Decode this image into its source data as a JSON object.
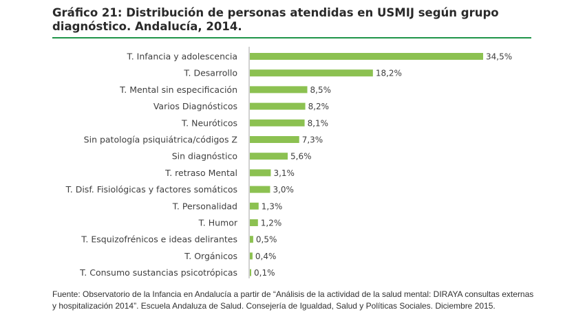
{
  "title": "Gráfico 21: Distribución de personas atendidas en USMIJ según grupo diagnóstico. Andalucía, 2014.",
  "source": "Fuente: Observatorio de la Infancia en Andalucía a partir de “Análisis de la actividad de la salud mental: DIRAYA consultas externas y hospitalización 2014”. Escuela Andaluza de Salud. Consejería de Igualdad, Salud y Políticas Sociales. Diciembre 2015.",
  "colors": {
    "bar": "#8cc151",
    "rule": "#1e9448",
    "axis": "#a6a6a6"
  },
  "chart_data": {
    "type": "bar",
    "orientation": "horizontal",
    "categories": [
      "T. Infancia y adolescencia",
      "T. Desarrollo",
      "T. Mental sin especificación",
      "Varios Diagnósticos",
      "T. Neuróticos",
      "Sin patología psiquiátrica/códigos Z",
      "Sin diagnóstico",
      "T. retraso Mental",
      "T. Disf. Fisiológicas y factores somáticos",
      "T. Personalidad",
      "T. Humor",
      "T. Esquizofrénicos e ideas delirantes",
      "T. Orgánicos",
      "T. Consumo sustancias psicotrópicas"
    ],
    "values": [
      34.5,
      18.2,
      8.5,
      8.2,
      8.1,
      7.3,
      5.6,
      3.1,
      3.0,
      1.3,
      1.2,
      0.5,
      0.4,
      0.1
    ],
    "value_labels": [
      "34,5%",
      "18,2%",
      "8,5%",
      "8,2%",
      "8,1%",
      "7,3%",
      "5,6%",
      "3,1%",
      "3,0%",
      "1,3%",
      "1,2%",
      "0,5%",
      "0,4%",
      "0,1%"
    ],
    "title": "",
    "xlabel": "",
    "ylabel": "",
    "grid": false,
    "legend": "none"
  }
}
